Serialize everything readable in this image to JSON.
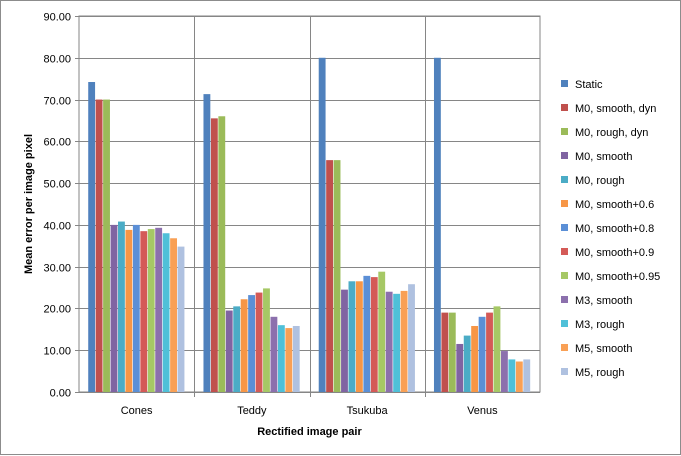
{
  "chart_data": {
    "type": "bar",
    "title": "",
    "xlabel": "Rectified image pair",
    "ylabel": "Mean error per image pixel",
    "ylim": [
      0,
      90
    ],
    "yticks": [
      "0.00",
      "10.00",
      "20.00",
      "30.00",
      "40.00",
      "50.00",
      "60.00",
      "70.00",
      "80.00",
      "90.00"
    ],
    "grid": "horizontal",
    "legend_position": "right",
    "categories": [
      "Cones",
      "Teddy",
      "Tsukuba",
      "Venus"
    ],
    "series": [
      {
        "name": "Static",
        "color": "#4F81BD",
        "values": [
          74.2,
          71.3,
          80.0,
          80.0
        ]
      },
      {
        "name": "M0, smooth, dyn",
        "color": "#C0504D",
        "values": [
          70.0,
          65.5,
          55.5,
          19.0
        ]
      },
      {
        "name": "M0, rough, dyn",
        "color": "#9BBB59",
        "values": [
          70.0,
          66.0,
          55.5,
          19.0
        ]
      },
      {
        "name": "M0, smooth",
        "color": "#8064A2",
        "values": [
          40.0,
          19.5,
          24.5,
          11.5
        ]
      },
      {
        "name": "M0, rough",
        "color": "#4BACC6",
        "values": [
          40.8,
          20.5,
          26.5,
          13.5
        ]
      },
      {
        "name": "M0, smooth+0.6",
        "color": "#F79646",
        "values": [
          38.8,
          22.2,
          26.5,
          15.8
        ]
      },
      {
        "name": "M0, smooth+0.8",
        "color": "#5B8FD6",
        "values": [
          40.0,
          23.2,
          27.8,
          18.0
        ]
      },
      {
        "name": "M0, smooth+0.9",
        "color": "#D45A57",
        "values": [
          38.5,
          23.8,
          27.5,
          19.0
        ]
      },
      {
        "name": "M0, smooth+0.95",
        "color": "#A6C865",
        "values": [
          39.0,
          24.8,
          28.8,
          20.5
        ]
      },
      {
        "name": "M3, smooth",
        "color": "#8C70AD",
        "values": [
          39.3,
          18.0,
          24.0,
          9.8
        ]
      },
      {
        "name": "M3, rough",
        "color": "#4FC0D8",
        "values": [
          38.0,
          16.0,
          23.5,
          7.8
        ]
      },
      {
        "name": "M5, smooth",
        "color": "#F9A055",
        "values": [
          36.8,
          15.3,
          24.2,
          7.3
        ]
      },
      {
        "name": "M5, rough",
        "color": "#AFC1E0",
        "values": [
          34.8,
          15.8,
          25.8,
          7.8
        ]
      }
    ]
  }
}
